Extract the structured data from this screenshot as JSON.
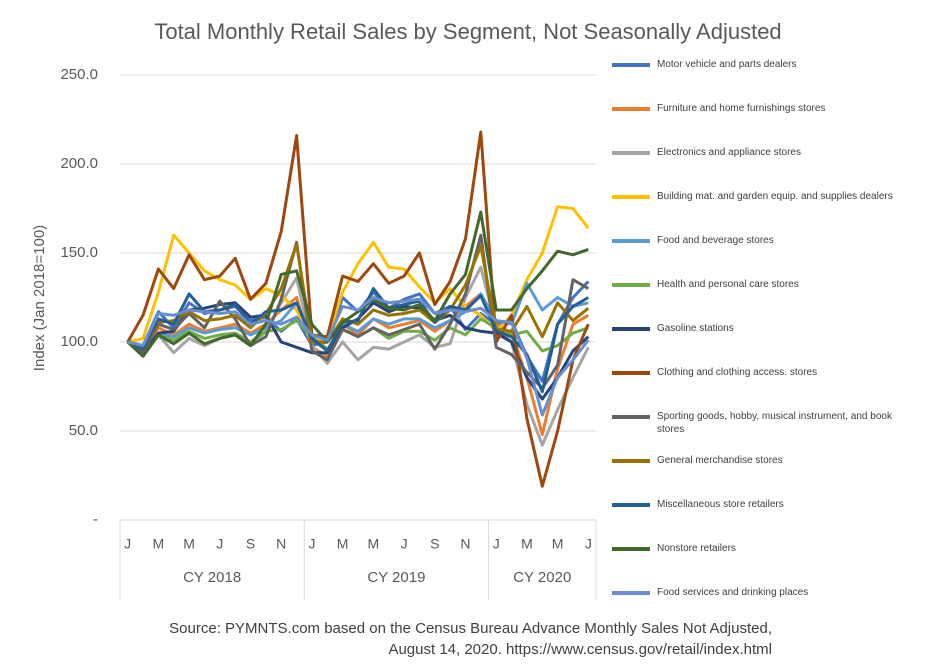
{
  "chart_data": {
    "type": "line",
    "title": "Total Monthly Retail Sales by Segment, Not Seasonally Adjusted",
    "y_label": "Index (Jan 2018=100)",
    "source": [
      "Source: PYMNTS.com based on the Census Bureau Advance Monthly  Sales Not Adjusted,",
      "August 14, 2020.  https://www.census.gov/retail/index.html"
    ],
    "categories": [
      "J",
      null,
      "M",
      null,
      "M",
      null,
      "J",
      null,
      "S",
      null,
      "N",
      null,
      "J",
      null,
      "M",
      null,
      "M",
      null,
      "J",
      null,
      "S",
      null,
      "N",
      null,
      "J",
      null,
      "M",
      null,
      "M",
      null,
      "J"
    ],
    "groups": [
      "CY 2018",
      "CY 2019",
      "CY 2020"
    ],
    "ylim": [
      0,
      250
    ],
    "yticks": [
      {
        "value": 0,
        "label": "-"
      },
      {
        "value": 50,
        "label": "50.0"
      },
      {
        "value": 100,
        "label": "100.0"
      },
      {
        "value": 150,
        "label": "150.0"
      },
      {
        "value": 200,
        "label": "200.0"
      },
      {
        "value": 250,
        "label": "250.0"
      }
    ],
    "grid": true,
    "series": [
      {
        "name": "Motor vehicle and parts dealers",
        "color": "#4472c4",
        "values": [
          100,
          98,
          117,
          108,
          122,
          116,
          118,
          120,
          112,
          114,
          106,
          113,
          98,
          100,
          125,
          117,
          128,
          119,
          124,
          127,
          116,
          120,
          107,
          116,
          110,
          112,
          92,
          78,
          110,
          125,
          134
        ]
      },
      {
        "name": "Furniture and home furnishings stores",
        "color": "#ed7d31",
        "values": [
          100,
          95,
          108,
          104,
          110,
          106,
          108,
          110,
          105,
          110,
          118,
          125,
          97,
          92,
          110,
          104,
          113,
          108,
          110,
          112,
          106,
          112,
          120,
          127,
          110,
          105,
          80,
          48,
          85,
          110,
          115
        ]
      },
      {
        "name": "Electronics and appliance stores",
        "color": "#a5a5a5",
        "values": [
          100,
          92,
          104,
          94,
          102,
          98,
          102,
          104,
          98,
          106,
          122,
          136,
          98,
          88,
          100,
          90,
          97,
          96,
          100,
          104,
          97,
          99,
          125,
          142,
          108,
          100,
          65,
          42,
          62,
          80,
          97
        ]
      },
      {
        "name": "Building mat. and garden equip. and supplies dealers",
        "color": "#ffc000",
        "values": [
          100,
          102,
          128,
          160,
          150,
          140,
          135,
          132,
          124,
          130,
          126,
          118,
          100,
          102,
          128,
          144,
          156,
          142,
          141,
          131,
          122,
          130,
          120,
          115,
          106,
          115,
          135,
          150,
          176,
          175,
          164
        ]
      },
      {
        "name": "Food and beverage stores",
        "color": "#5b9bd5",
        "values": [
          100,
          93,
          105,
          103,
          108,
          105,
          107,
          108,
          104,
          108,
          112,
          122,
          102,
          95,
          110,
          106,
          113,
          110,
          113,
          113,
          108,
          112,
          117,
          127,
          112,
          110,
          133,
          118,
          125,
          120,
          122
        ]
      },
      {
        "name": "Health and personal care stores",
        "color": "#70ad47",
        "values": [
          100,
          94,
          104,
          101,
          106,
          102,
          104,
          105,
          100,
          106,
          107,
          112,
          103,
          96,
          107,
          103,
          108,
          102,
          106,
          106,
          101,
          108,
          104,
          113,
          108,
          104,
          106,
          95,
          98,
          105,
          108
        ]
      },
      {
        "name": "Gasoline stations",
        "color": "#264478",
        "values": [
          100,
          93,
          105,
          106,
          118,
          119,
          121,
          122,
          114,
          115,
          100,
          97,
          94,
          94,
          108,
          113,
          122,
          117,
          120,
          119,
          112,
          115,
          108,
          106,
          105,
          100,
          80,
          68,
          80,
          95,
          103
        ]
      },
      {
        "name": "Clothing and clothing access. stores",
        "color": "#9e480e",
        "values": [
          100,
          115,
          141,
          130,
          149,
          135,
          137,
          147,
          124,
          133,
          162,
          216,
          104,
          103,
          137,
          134,
          144,
          133,
          137,
          150,
          121,
          134,
          158,
          218,
          100,
          115,
          57,
          19,
          50,
          90,
          110
        ]
      },
      {
        "name": "Sporting goods, hobby, musical instrument, and book stores",
        "color": "#636363",
        "values": [
          100,
          94,
          110,
          107,
          116,
          108,
          123,
          113,
          98,
          103,
          124,
          156,
          95,
          90,
          107,
          103,
          108,
          104,
          107,
          110,
          96,
          110,
          127,
          160,
          97,
          93,
          83,
          74,
          87,
          135,
          130
        ]
      },
      {
        "name": "General merchandise stores",
        "color": "#997300",
        "values": [
          100,
          96,
          111,
          112,
          117,
          112,
          113,
          115,
          108,
          116,
          130,
          155,
          100,
          100,
          113,
          110,
          118,
          115,
          116,
          118,
          111,
          118,
          132,
          154,
          107,
          106,
          120,
          103,
          122,
          112,
          119
        ]
      },
      {
        "name": "Miscellaneous store retailers",
        "color": "#255e91",
        "values": [
          100,
          96,
          113,
          110,
          127,
          117,
          118,
          121,
          110,
          117,
          118,
          122,
          102,
          95,
          111,
          112,
          130,
          119,
          121,
          123,
          111,
          120,
          118,
          126,
          106,
          103,
          93,
          72,
          110,
          120,
          125
        ]
      },
      {
        "name": "Nonstore retailers",
        "color": "#43682b",
        "values": [
          100,
          92,
          104,
          99,
          105,
          99,
          102,
          104,
          98,
          110,
          138,
          140,
          110,
          100,
          111,
          117,
          124,
          119,
          118,
          121,
          112,
          127,
          138,
          173,
          118,
          118,
          130,
          140,
          151,
          149,
          152
        ]
      },
      {
        "name": "Food services and drinking places",
        "color": "#698ed0",
        "values": [
          100,
          98,
          116,
          115,
          118,
          117,
          116,
          117,
          110,
          112,
          110,
          114,
          104,
          101,
          120,
          118,
          125,
          122,
          123,
          124,
          116,
          118,
          117,
          119,
          112,
          111,
          91,
          59,
          80,
          90,
          101
        ]
      }
    ]
  }
}
